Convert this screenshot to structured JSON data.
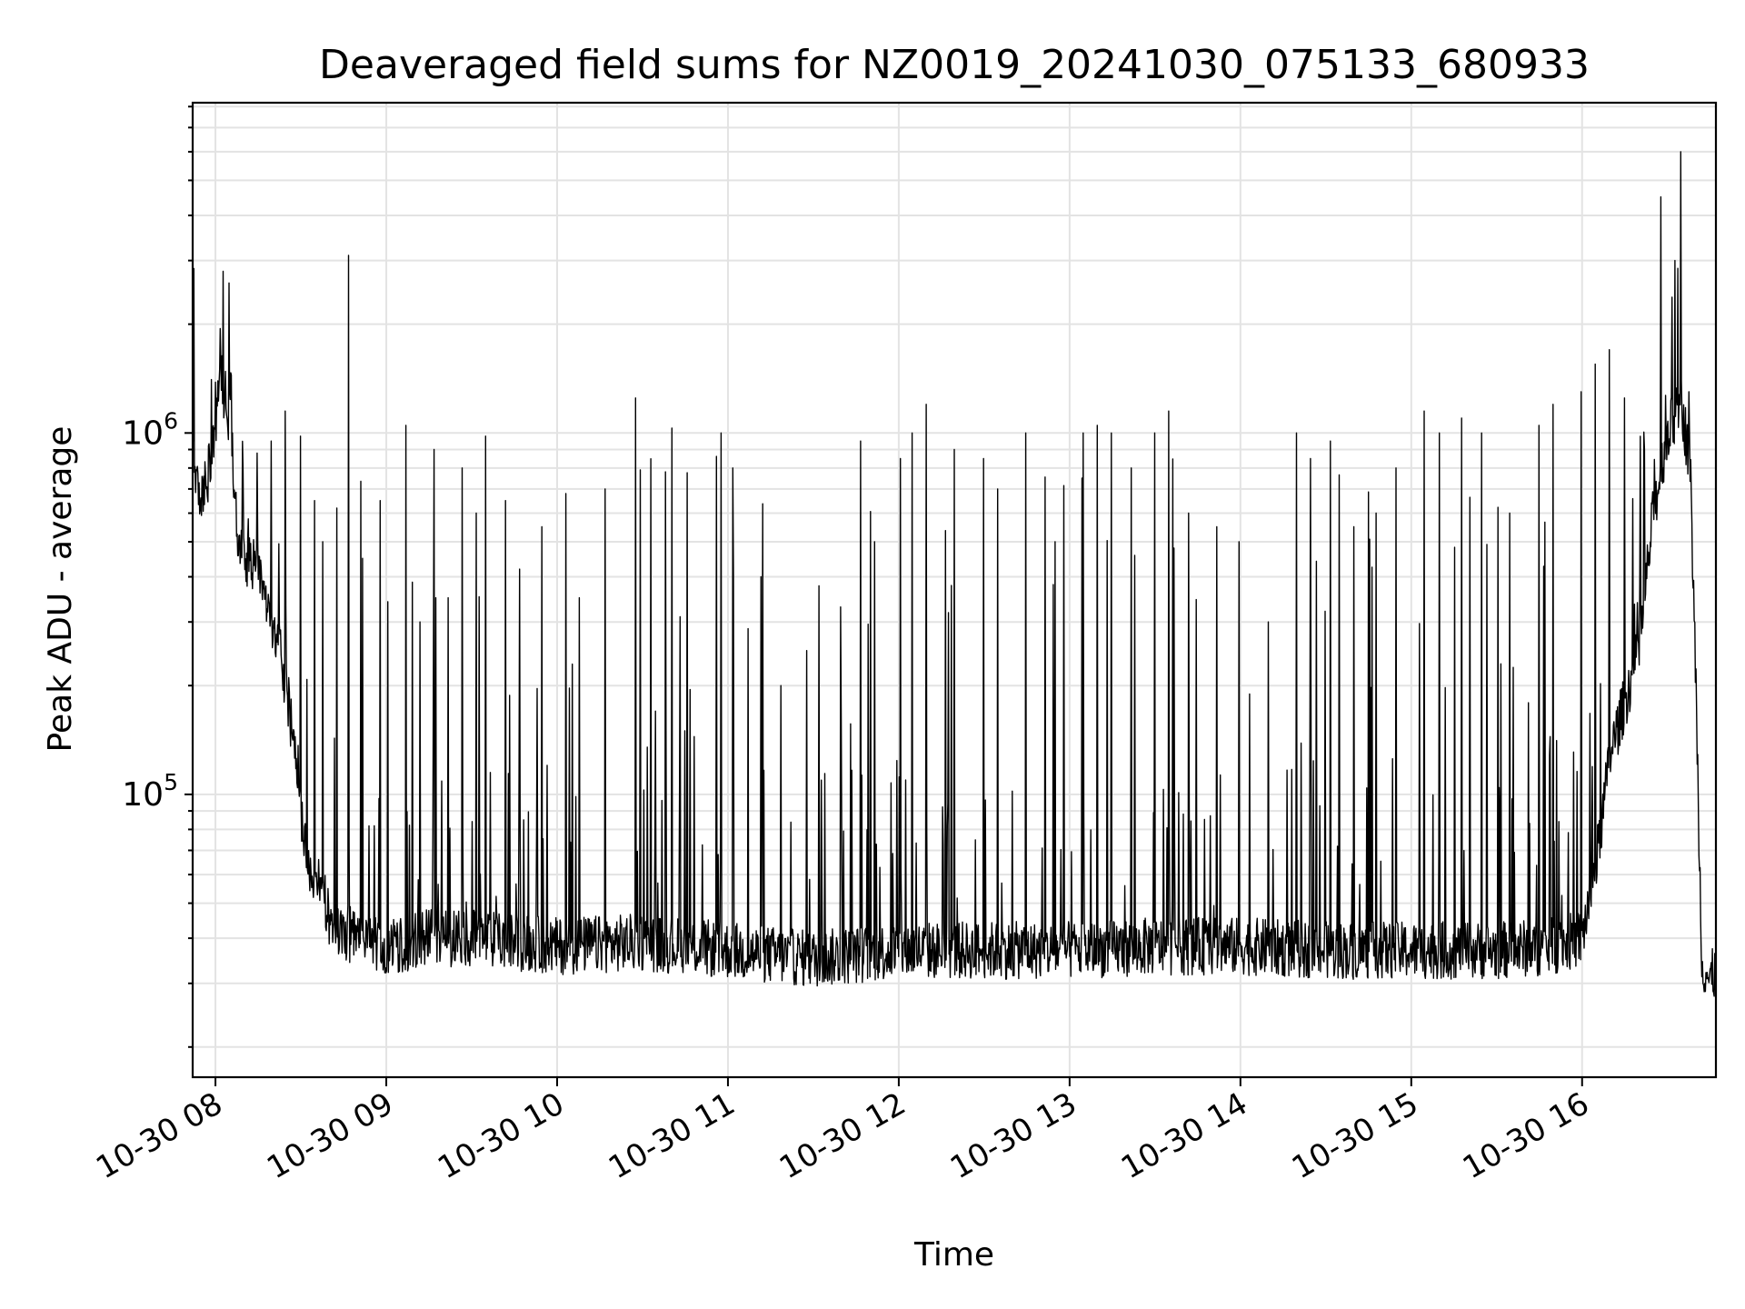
{
  "chart_data": {
    "type": "line",
    "title": "Deaveraged field sums for NZ0019_20241030_075133_680933",
    "xlabel": "Time",
    "ylabel": "Peak ADU - average",
    "yscale": "log",
    "ylim": [
      16500,
      8200000
    ],
    "xlim": [
      "2024-10-30 07:52",
      "2024-10-30 16:47"
    ],
    "grid": true,
    "x_ticks": [
      "10-30 08",
      "10-30 09",
      "10-30 10",
      "10-30 11",
      "10-30 12",
      "10-30 13",
      "10-30 14",
      "10-30 15",
      "10-30 16"
    ],
    "y_ticks": [
      {
        "base": "10",
        "exp": "5",
        "value": 100000
      },
      {
        "base": "10",
        "exp": "6",
        "value": 1000000
      }
    ],
    "colors": {
      "series": "#000000",
      "grid": "#e3e3e3",
      "background": "#ffffff"
    },
    "series": [
      {
        "x": [
          "2024-10-30 07:52",
          "2024-10-30 07:55",
          "2024-10-30 07:58",
          "2024-10-30 08:02",
          "2024-10-30 08:05",
          "2024-10-30 08:08",
          "2024-10-30 08:10",
          "2024-10-30 08:15",
          "2024-10-30 08:20",
          "2024-10-30 08:25",
          "2024-10-30 08:30",
          "2024-10-30 08:33",
          "2024-10-30 08:37",
          "2024-10-30 08:40",
          "2024-10-30 08:45",
          "2024-10-30 08:50",
          "2024-10-30 08:55",
          "2024-10-30 09:00",
          "2024-10-30 09:15",
          "2024-10-30 09:30",
          "2024-10-30 09:45",
          "2024-10-30 10:00",
          "2024-10-30 10:30",
          "2024-10-30 11:00",
          "2024-10-30 11:30",
          "2024-10-30 12:00",
          "2024-10-30 12:30",
          "2024-10-30 13:00",
          "2024-10-30 13:30",
          "2024-10-30 14:00",
          "2024-10-30 14:30",
          "2024-10-30 15:00",
          "2024-10-30 15:30",
          "2024-10-30 15:50",
          "2024-10-30 16:00",
          "2024-10-30 16:05",
          "2024-10-30 16:10",
          "2024-10-30 16:15",
          "2024-10-30 16:20",
          "2024-10-30 16:25",
          "2024-10-30 16:30",
          "2024-10-30 16:35",
          "2024-10-30 16:38",
          "2024-10-30 16:40",
          "2024-10-30 16:42",
          "2024-10-30 16:45",
          "2024-10-30 16:47"
        ],
        "values": [
          850000,
          650000,
          800000,
          1400000,
          1100000,
          500000,
          450000,
          420000,
          300000,
          200000,
          90000,
          65000,
          55000,
          45000,
          42000,
          40000,
          39000,
          38000,
          40000,
          40000,
          39000,
          38000,
          39000,
          37000,
          35000,
          37000,
          37000,
          37000,
          38000,
          38000,
          37000,
          37000,
          37000,
          38000,
          40000,
          65000,
          130000,
          180000,
          250000,
          600000,
          1000000,
          1200000,
          800000,
          200000,
          35000,
          30000,
          33000
        ]
      }
    ],
    "spikes": [
      [
        "2024-10-30 08:03",
        2800000
      ],
      [
        "2024-10-30 08:05",
        2600000
      ],
      [
        "2024-10-30 08:10",
        800000
      ],
      [
        "2024-10-30 08:15",
        880000
      ],
      [
        "2024-10-30 08:20",
        950000
      ],
      [
        "2024-10-30 08:25",
        1150000
      ],
      [
        "2024-10-30 08:30",
        980000
      ],
      [
        "2024-10-30 08:35",
        650000
      ],
      [
        "2024-10-30 08:38",
        500000
      ],
      [
        "2024-10-30 08:43",
        620000
      ],
      [
        "2024-10-30 08:47",
        3100000
      ],
      [
        "2024-10-30 08:52",
        450000
      ],
      [
        "2024-10-30 08:58",
        650000
      ],
      [
        "2024-10-30 09:07",
        1050000
      ],
      [
        "2024-10-30 09:12",
        300000
      ],
      [
        "2024-10-30 09:17",
        900000
      ],
      [
        "2024-10-30 09:22",
        350000
      ],
      [
        "2024-10-30 09:27",
        800000
      ],
      [
        "2024-10-30 09:32",
        600000
      ],
      [
        "2024-10-30 09:35",
        980000
      ],
      [
        "2024-10-30 09:42",
        650000
      ],
      [
        "2024-10-30 09:47",
        420000
      ],
      [
        "2024-10-30 09:55",
        550000
      ],
      [
        "2024-10-30 10:08",
        350000
      ],
      [
        "2024-10-30 10:17",
        700000
      ],
      [
        "2024-10-30 10:28",
        1250000
      ],
      [
        "2024-10-30 10:35",
        170000
      ],
      [
        "2024-10-30 10:45",
        150000
      ],
      [
        "2024-10-30 10:58",
        1000000
      ],
      [
        "2024-10-30 11:02",
        800000
      ],
      [
        "2024-10-30 11:12",
        400000
      ],
      [
        "2024-10-30 11:19",
        200000
      ],
      [
        "2024-10-30 11:28",
        250000
      ],
      [
        "2024-10-30 11:40",
        330000
      ],
      [
        "2024-10-30 11:47",
        950000
      ],
      [
        "2024-10-30 11:52",
        500000
      ],
      [
        "2024-10-30 12:01",
        850000
      ],
      [
        "2024-10-30 12:05",
        1000000
      ],
      [
        "2024-10-30 12:10",
        1200000
      ],
      [
        "2024-10-30 12:20",
        900000
      ],
      [
        "2024-10-30 12:30",
        850000
      ],
      [
        "2024-10-30 12:35",
        700000
      ],
      [
        "2024-10-30 12:45",
        1000000
      ],
      [
        "2024-10-30 12:55",
        500000
      ],
      [
        "2024-10-30 13:05",
        1000000
      ],
      [
        "2024-10-30 13:10",
        1050000
      ],
      [
        "2024-10-30 13:15",
        1000000
      ],
      [
        "2024-10-30 13:22",
        800000
      ],
      [
        "2024-10-30 13:30",
        1000000
      ],
      [
        "2024-10-30 13:35",
        1150000
      ],
      [
        "2024-10-30 13:42",
        600000
      ],
      [
        "2024-10-30 13:52",
        550000
      ],
      [
        "2024-10-30 14:00",
        500000
      ],
      [
        "2024-10-30 14:10",
        300000
      ],
      [
        "2024-10-30 14:20",
        1000000
      ],
      [
        "2024-10-30 14:25",
        850000
      ],
      [
        "2024-10-30 14:32",
        950000
      ],
      [
        "2024-10-30 14:40",
        550000
      ],
      [
        "2024-10-30 14:48",
        600000
      ],
      [
        "2024-10-30 14:55",
        800000
      ],
      [
        "2024-10-30 15:05",
        1150000
      ],
      [
        "2024-10-30 15:10",
        1000000
      ],
      [
        "2024-10-30 15:18",
        1100000
      ],
      [
        "2024-10-30 15:25",
        1000000
      ],
      [
        "2024-10-30 15:35",
        600000
      ],
      [
        "2024-10-30 15:45",
        1050000
      ],
      [
        "2024-10-30 15:50",
        1200000
      ],
      [
        "2024-10-30 16:00",
        1300000
      ],
      [
        "2024-10-30 16:05",
        1550000
      ],
      [
        "2024-10-30 16:10",
        1700000
      ],
      [
        "2024-10-30 16:15",
        1250000
      ],
      [
        "2024-10-30 16:22",
        900000
      ],
      [
        "2024-10-30 16:28",
        4500000
      ],
      [
        "2024-10-30 16:33",
        3000000
      ],
      [
        "2024-10-30 16:35",
        6000000
      ],
      [
        "2024-10-30 16:38",
        1300000
      ]
    ]
  }
}
